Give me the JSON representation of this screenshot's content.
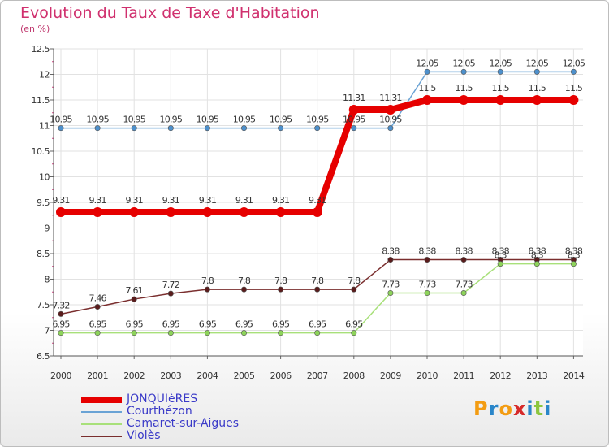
{
  "title": "Evolution du Taux de Taxe d'Habitation",
  "unit": "(en %)",
  "logo": {
    "text": "Proxiti",
    "letters": [
      "P",
      "r",
      "o",
      "x",
      "i",
      "t",
      "i"
    ],
    "colors": [
      "#f39c12",
      "#2a86c9",
      "#f39c12",
      "#d62a2a",
      "#2a86c9",
      "#8cc63f",
      "#2a86c9"
    ]
  },
  "chart_data": {
    "type": "line",
    "categories": [
      "2000",
      "2001",
      "2002",
      "2003",
      "2004",
      "2005",
      "2006",
      "2007",
      "2008",
      "2009",
      "2010",
      "2011",
      "2012",
      "2013",
      "2014"
    ],
    "ylim": [
      6.5,
      12.5
    ],
    "yticks": [
      "6.5",
      "7",
      "7.5",
      "8",
      "8.5",
      "9",
      "9.5",
      "10",
      "10.5",
      "11",
      "11.5",
      "12",
      "12.5"
    ],
    "grid": true,
    "legend_position": "bottom-left",
    "series": [
      {
        "name": "JONQUIèRES",
        "color": "#e60000",
        "width": 8,
        "values": [
          9.31,
          9.31,
          9.31,
          9.31,
          9.31,
          9.31,
          9.31,
          9.31,
          11.31,
          11.31,
          11.5,
          11.5,
          11.5,
          11.5,
          11.5
        ],
        "labels": [
          "9.31",
          "9.31",
          "9.31",
          "9.31",
          "9.31",
          "9.31",
          "9.31",
          "9.31",
          "11.31",
          "11.31",
          "11.5",
          "11.5",
          "11.5",
          "11.5",
          "11.5"
        ]
      },
      {
        "name": "Courthézon",
        "color": "#6aa3d5",
        "width": 1.5,
        "values": [
          10.95,
          10.95,
          10.95,
          10.95,
          10.95,
          10.95,
          10.95,
          10.95,
          10.95,
          10.95,
          12.05,
          12.05,
          12.05,
          12.05,
          12.05
        ],
        "labels": [
          "10.95",
          "10.95",
          "10.95",
          "10.95",
          "10.95",
          "10.95",
          "10.95",
          "10.95",
          "10.95",
          "10.95",
          "12.05",
          "12.05",
          "12.05",
          "12.05",
          "12.05"
        ]
      },
      {
        "name": "Camaret-sur-Aigues",
        "color": "#a8e07a",
        "width": 1.5,
        "values": [
          6.95,
          6.95,
          6.95,
          6.95,
          6.95,
          6.95,
          6.95,
          6.95,
          6.95,
          7.73,
          7.73,
          7.73,
          8.3,
          8.3,
          8.3
        ],
        "labels": [
          "6.95",
          "6.95",
          "6.95",
          "6.95",
          "6.95",
          "6.95",
          "6.95",
          "6.95",
          "6.95",
          "7.73",
          "7.73",
          "7.73",
          "8.3",
          "8.3",
          "8.3"
        ]
      },
      {
        "name": "Violès",
        "color": "#7a2e2e",
        "width": 1.5,
        "values": [
          7.32,
          7.46,
          7.61,
          7.72,
          7.8,
          7.8,
          7.8,
          7.8,
          7.8,
          8.38,
          8.38,
          8.38,
          8.38,
          8.38,
          8.38
        ],
        "labels": [
          "7.32",
          "7.46",
          "7.61",
          "7.72",
          "7.8",
          "7.8",
          "7.8",
          "7.8",
          "7.8",
          "8.38",
          "8.38",
          "8.38",
          "8.38",
          "8.38",
          "8.38"
        ]
      }
    ]
  }
}
